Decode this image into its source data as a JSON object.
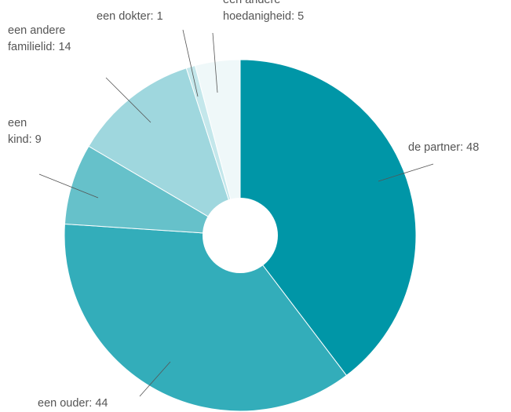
{
  "chart_data": {
    "type": "pie",
    "title": "",
    "legend": "none",
    "slices": [
      {
        "label_lines": [
          "de partner: 48"
        ],
        "value": 48,
        "color": "#0096a7"
      },
      {
        "label_lines": [
          "een ouder: 44"
        ],
        "value": 44,
        "color": "#33adba"
      },
      {
        "label_lines": [
          "een",
          "kind: 9"
        ],
        "value": 9,
        "color": "#66c1ca"
      },
      {
        "label_lines": [
          "een andere",
          "familielid: 14"
        ],
        "value": 14,
        "color": "#9fd7de"
      },
      {
        "label_lines": [
          "een dokter: 1"
        ],
        "value": 1,
        "color": "#c4e7eb"
      },
      {
        "label_lines": [
          "een andere",
          "hoedanigheid: 5"
        ],
        "value": 5,
        "color": "#eff8f9"
      }
    ]
  }
}
